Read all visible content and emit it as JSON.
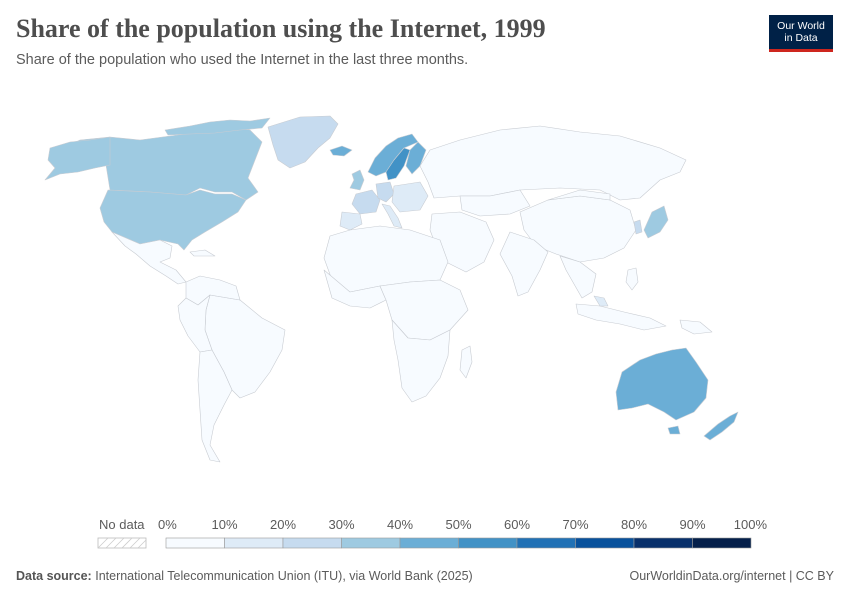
{
  "header": {
    "title": "Share of the population using the Internet, 1999",
    "subtitle": "Share of the population who used the Internet in the last three months.",
    "logo_line1": "Our World",
    "logo_line2": "in Data"
  },
  "legend": {
    "no_data_label": "No data",
    "bins": [
      "0%",
      "10%",
      "20%",
      "30%",
      "40%",
      "50%",
      "60%",
      "70%",
      "80%",
      "90%",
      "100%"
    ],
    "colors": [
      "#f7fbff",
      "#deebf7",
      "#c6dbef",
      "#9ecae1",
      "#6baed6",
      "#4292c6",
      "#2171b5",
      "#08519c",
      "#08306b",
      "#041f4a"
    ]
  },
  "colors": {
    "border": "#c8ccd2",
    "no_data": "#ffffff",
    "logo_bg": "#002147",
    "logo_accent": "#ce261e"
  },
  "footer": {
    "source_label": "Data source:",
    "source_text": "International Telecommunication Union (ITU), via World Bank (2025)",
    "right_text": "OurWorldinData.org/internet | CC BY"
  }
}
